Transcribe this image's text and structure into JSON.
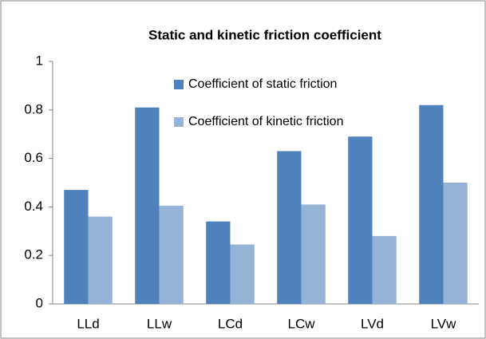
{
  "chart_data": {
    "type": "bar",
    "title": "Static and  kinetic friction coefficient",
    "categories": [
      "LLd",
      "LLw",
      "LCd",
      "LCw",
      "LVd",
      "LVw"
    ],
    "series": [
      {
        "name": "Coefficient of static friction",
        "color": "#4f81bd",
        "values": [
          0.47,
          0.81,
          0.34,
          0.63,
          0.69,
          0.82
        ]
      },
      {
        "name": "Coefficient of kinetic friction",
        "color": "#95b3d7",
        "values": [
          0.36,
          0.405,
          0.245,
          0.41,
          0.28,
          0.5
        ]
      }
    ],
    "ylim": [
      0,
      1
    ],
    "yticks": [
      0,
      0.2,
      0.4,
      0.6,
      0.8,
      1
    ],
    "grid": false,
    "legend": "upper right"
  }
}
